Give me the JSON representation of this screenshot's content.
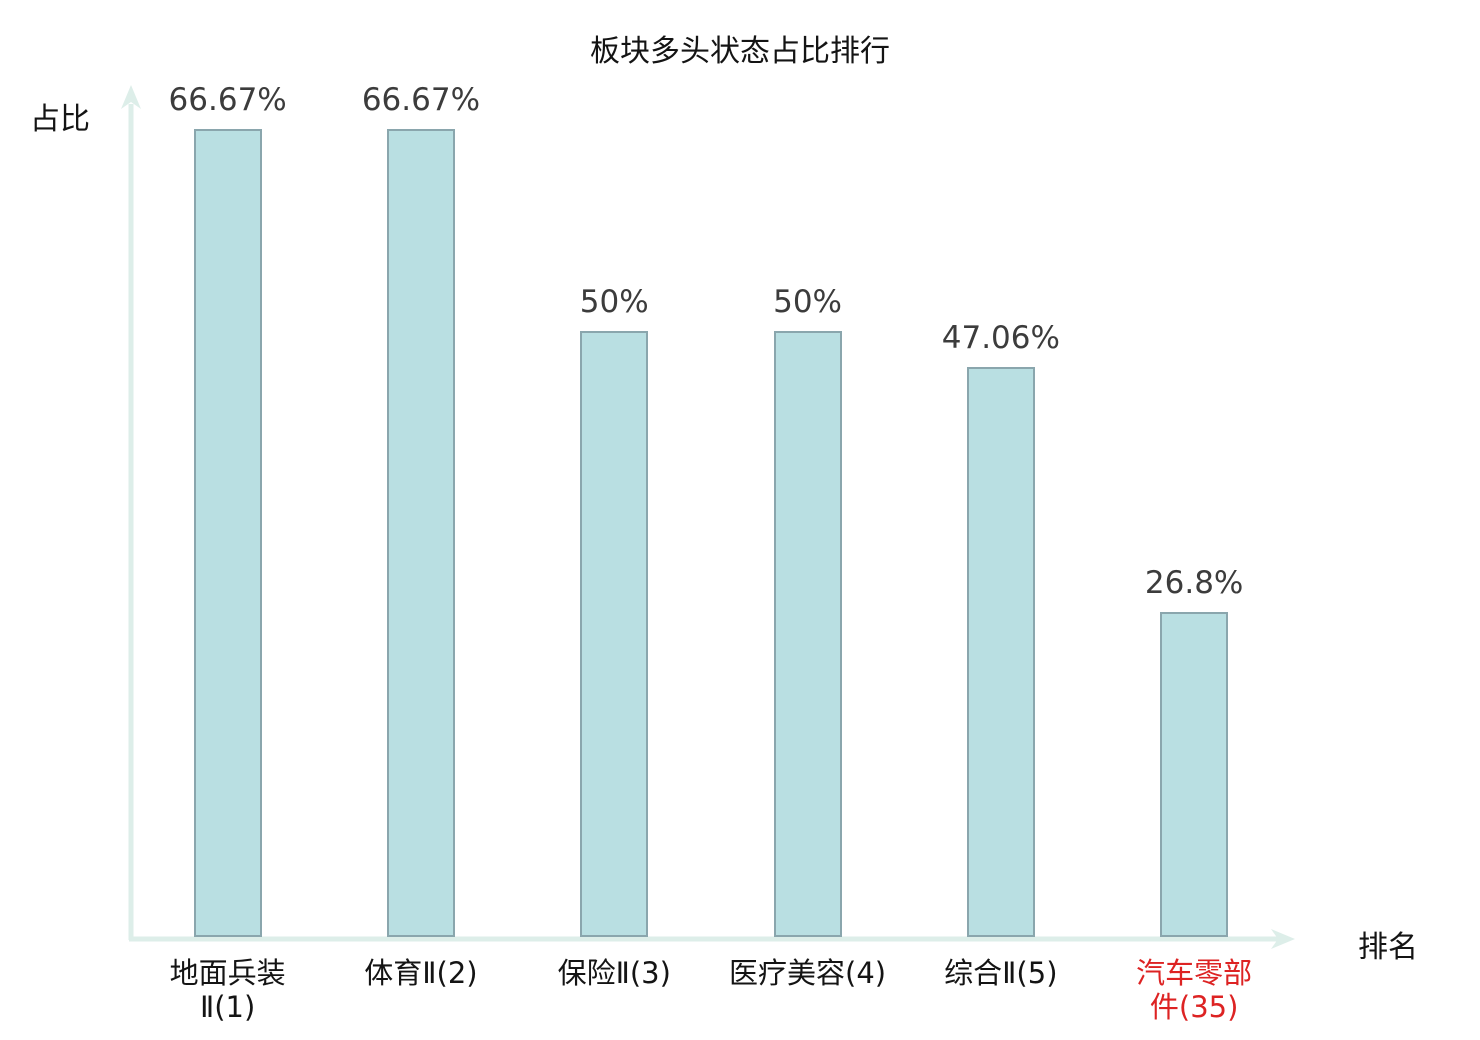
{
  "title": "板块多头状态占比排行",
  "axes": {
    "y_label": "占比",
    "x_label": "排名"
  },
  "colors": {
    "title_text": "#141414",
    "axis_line": "#ddeee9",
    "bar_fill": "#b9dfe2",
    "bar_border": "#8aa6ad",
    "value_text": "#3c3c3c",
    "category_text": "#141414",
    "highlight_text": "#dd2323"
  },
  "chart_data": {
    "type": "bar",
    "title": "板块多头状态占比排行",
    "xlabel": "排名",
    "ylabel": "占比",
    "categories": [
      "地面兵装Ⅱ(1)",
      "体育Ⅱ(2)",
      "保险Ⅱ(3)",
      "医疗美容(4)",
      "综合Ⅱ(5)",
      "汽车零部件(35)"
    ],
    "category_display": [
      "地面兵装\nⅡ(1)",
      "体育Ⅱ(2)",
      "保险Ⅱ(3)",
      "医疗美容(4)",
      "综合Ⅱ(5)",
      "汽车零部\n件(35)"
    ],
    "values": [
      66.67,
      66.67,
      50,
      50,
      47.06,
      26.8
    ],
    "value_labels": [
      "66.67%",
      "66.67%",
      "50%",
      "50%",
      "47.06%",
      "26.8%"
    ],
    "highlighted_category_index": 5,
    "ylim": [
      0,
      70
    ],
    "grid": false,
    "legend": false
  }
}
